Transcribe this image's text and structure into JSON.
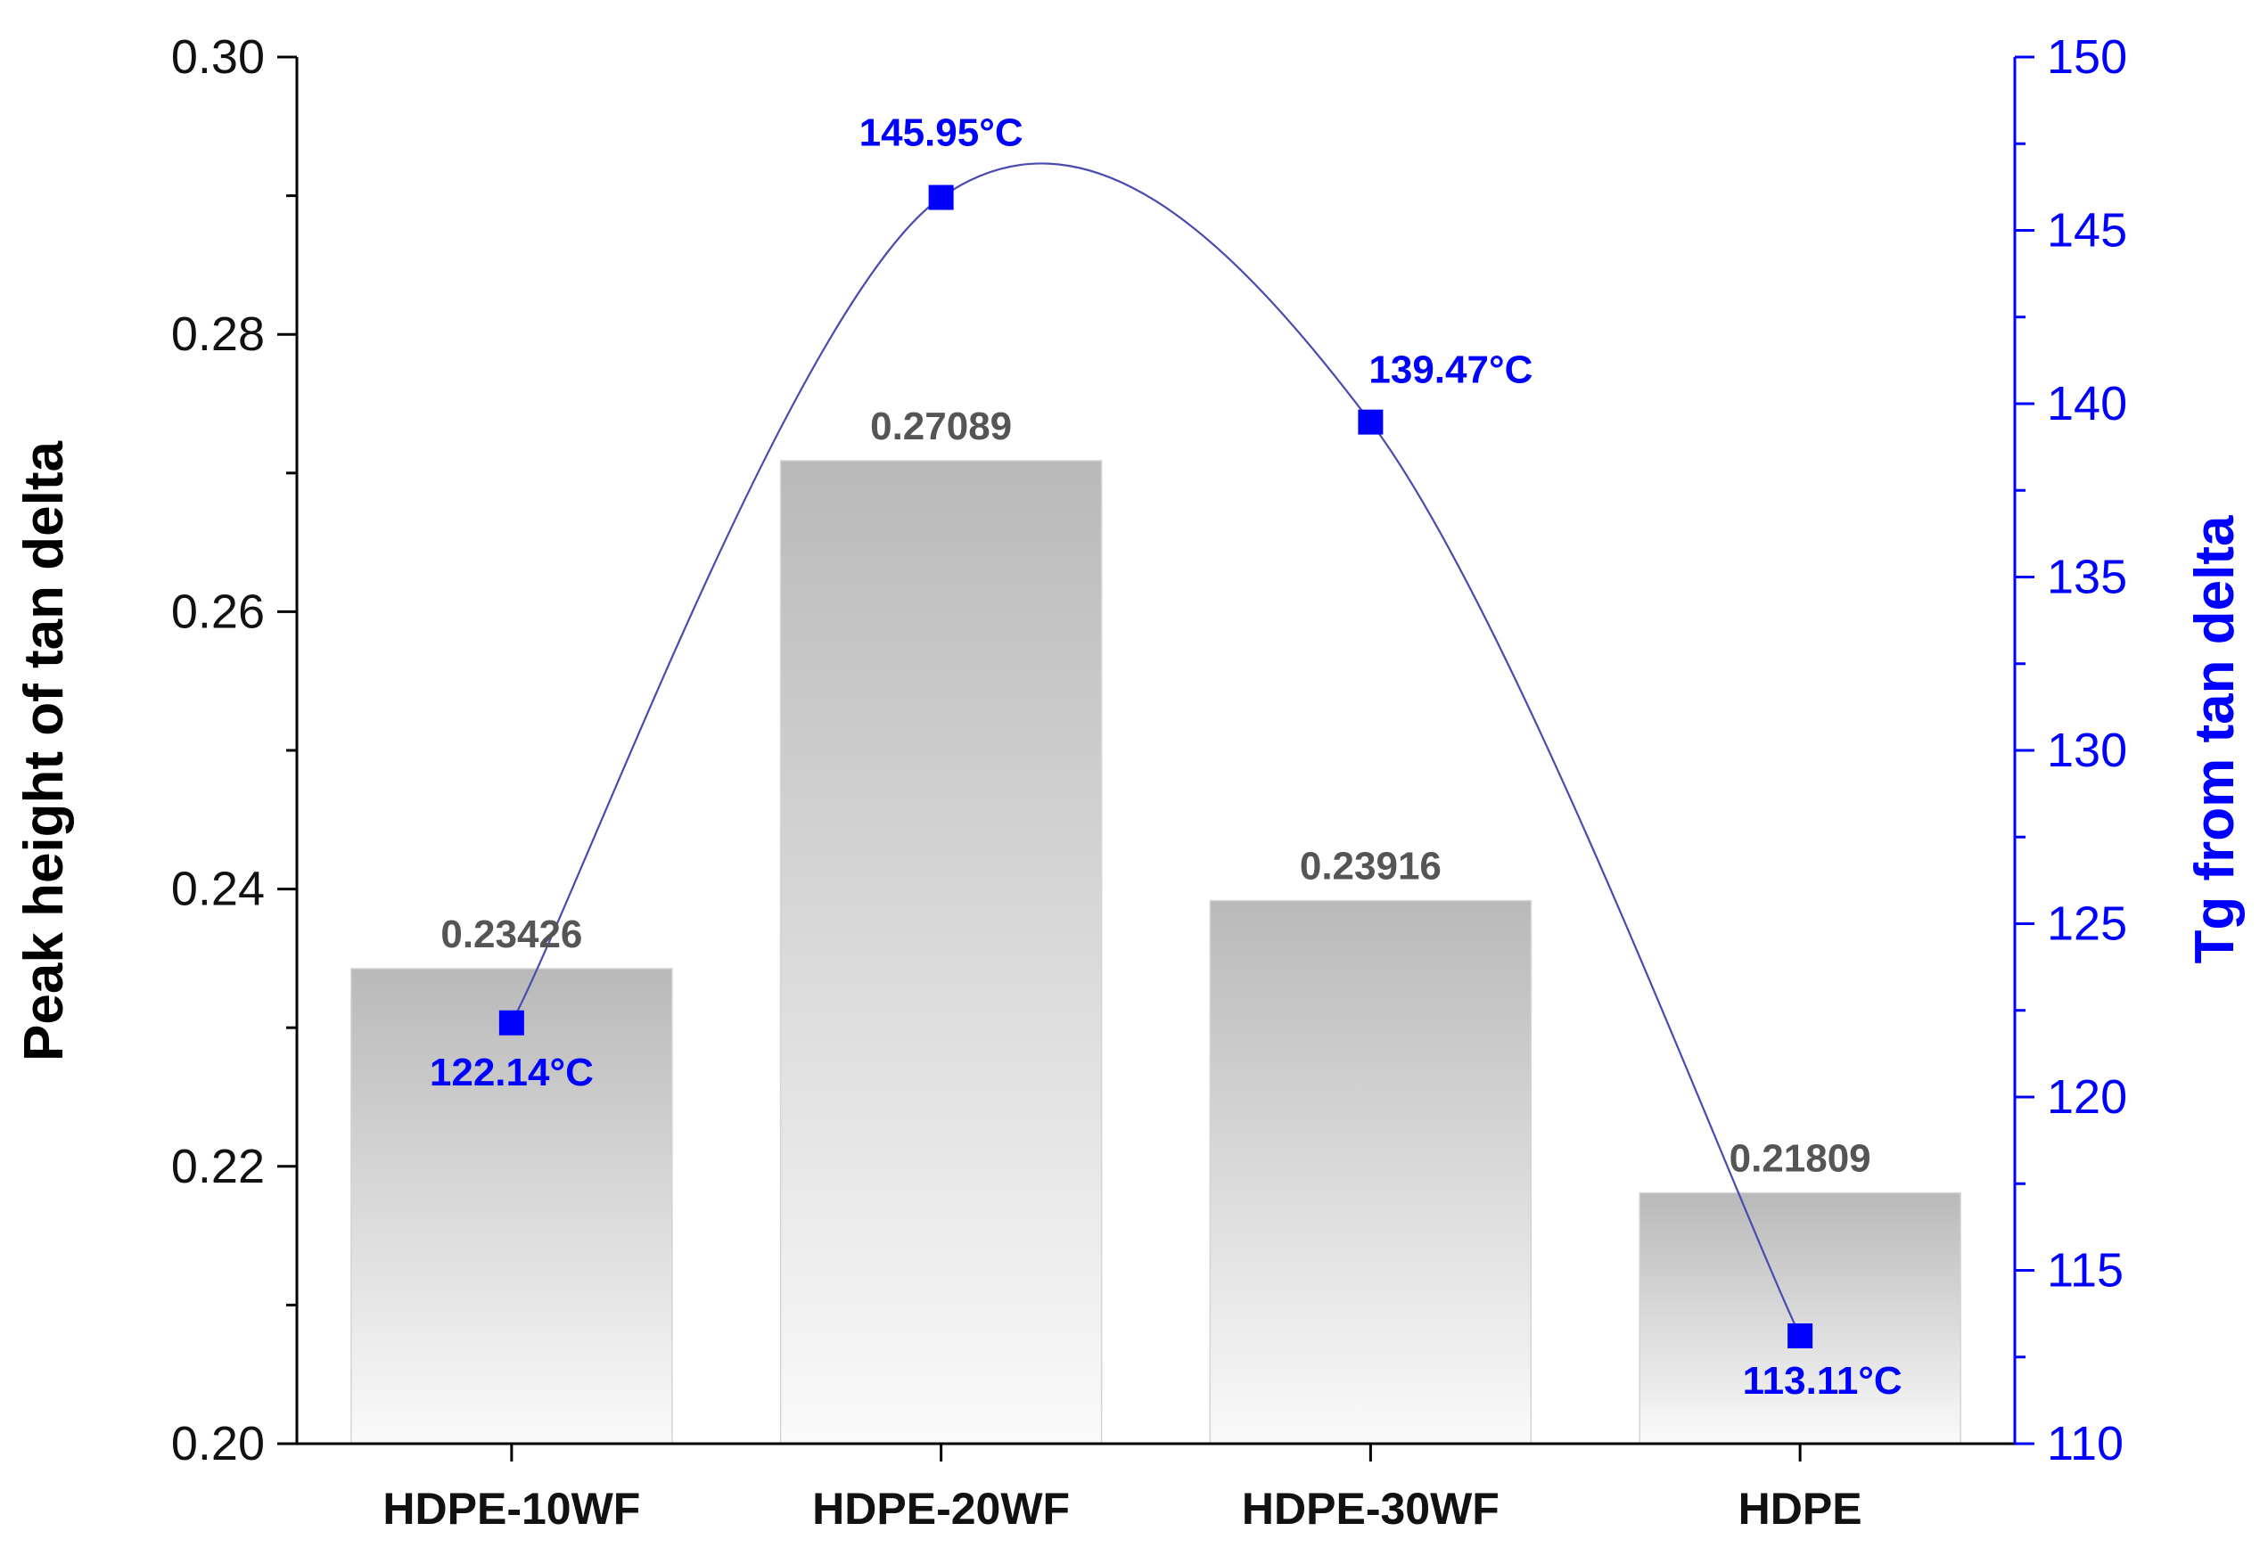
{
  "chart_data": {
    "type": "bar",
    "categories": [
      "HDPE-10WF",
      "HDPE-20WF",
      "HDPE-30WF",
      "HDPE"
    ],
    "series": [
      {
        "name": "",
        "kind": "bar",
        "axis": "left",
        "values": [
          0.23426,
          0.27089,
          0.23916,
          0.21809
        ],
        "value_labels": [
          "0.23426",
          "0.27089",
          "0.23916",
          "0.21809"
        ]
      },
      {
        "name": "",
        "kind": "line-markers",
        "axis": "right",
        "values": [
          122.14,
          145.95,
          139.47,
          113.11
        ],
        "value_labels": [
          "122.14°C",
          "145.95°C",
          "139.47°C",
          "113.11°C"
        ],
        "color": "#0000ff"
      }
    ],
    "ylabel": "Peak height of tan delta",
    "ylim": [
      0.2,
      0.3
    ],
    "yticks": [
      "0.20",
      "0.22",
      "0.24",
      "0.26",
      "0.28",
      "0.30"
    ],
    "y2label": "Tg from tan delta",
    "y2lim": [
      110,
      150
    ],
    "y2ticks": [
      "110",
      "115",
      "120",
      "125",
      "130",
      "135",
      "140",
      "145",
      "150"
    ],
    "grid": false,
    "colors": {
      "bar_top": "#b9b9b9",
      "bar_bottom": "#fafafa",
      "bar_label": "#555555",
      "right_axis": "#0000ff",
      "curve": "#4a4ab0",
      "axis": "#000000"
    }
  }
}
